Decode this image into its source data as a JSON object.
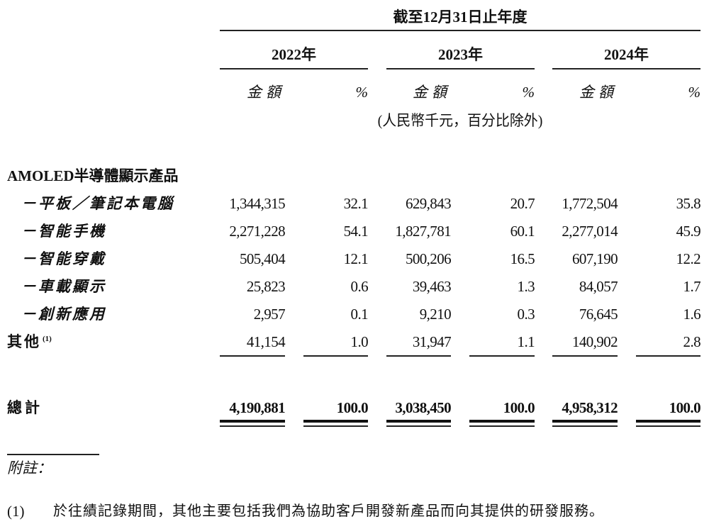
{
  "header": {
    "period": "截至12月31日止年度",
    "years": [
      "2022年",
      "2023年",
      "2024年"
    ],
    "amount_label": "金額",
    "percent_label": "%",
    "unit_note": "(人民幣千元，百分比除外)"
  },
  "section_title": "AMOLED半導體顯示產品",
  "rows": [
    {
      "label": "－平板／筆記本電腦",
      "values": [
        "1,344,315",
        "32.1",
        "629,843",
        "20.7",
        "1,772,504",
        "35.8"
      ]
    },
    {
      "label": "－智能手機",
      "values": [
        "2,271,228",
        "54.1",
        "1,827,781",
        "60.1",
        "2,277,014",
        "45.9"
      ]
    },
    {
      "label": "－智能穿戴",
      "values": [
        "505,404",
        "12.1",
        "500,206",
        "16.5",
        "607,190",
        "12.2"
      ]
    },
    {
      "label": "－車載顯示",
      "values": [
        "25,823",
        "0.6",
        "39,463",
        "1.3",
        "84,057",
        "1.7"
      ]
    },
    {
      "label": "－創新應用",
      "values": [
        "2,957",
        "0.1",
        "9,210",
        "0.3",
        "76,645",
        "1.6"
      ]
    },
    {
      "label": "其他",
      "note": "(1)",
      "values": [
        "41,154",
        "1.0",
        "31,947",
        "1.1",
        "140,902",
        "2.8"
      ]
    }
  ],
  "total": {
    "label": "總計",
    "values": [
      "4,190,881",
      "100.0",
      "3,038,450",
      "100.0",
      "4,958,312",
      "100.0"
    ]
  },
  "notes": {
    "title": "附註：",
    "items": [
      {
        "marker": "(1)",
        "text": "於往績記錄期間，其他主要包括我們為協助客戶開發新產品而向其提供的研發服務。"
      }
    ]
  }
}
